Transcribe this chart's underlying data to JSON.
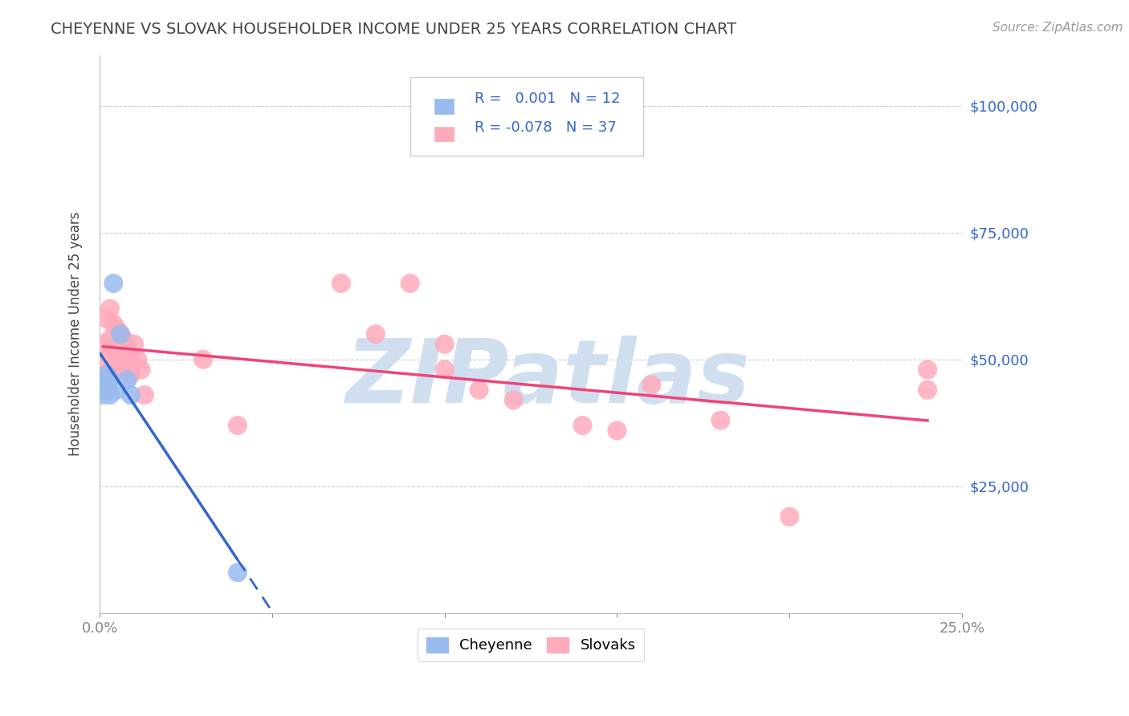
{
  "title": "CHEYENNE VS SLOVAK HOUSEHOLDER INCOME UNDER 25 YEARS CORRELATION CHART",
  "source": "Source: ZipAtlas.com",
  "ylabel": "Householder Income Under 25 years",
  "xlim": [
    0.0,
    0.25
  ],
  "ylim": [
    0,
    110000
  ],
  "xticks": [
    0.0,
    0.05,
    0.1,
    0.15,
    0.2,
    0.25
  ],
  "xticklabels": [
    "0.0%",
    "",
    "",
    "",
    "",
    "25.0%"
  ],
  "ytick_positions": [
    0,
    25000,
    50000,
    75000,
    100000
  ],
  "ytick_labels": [
    "",
    "$25,000",
    "$50,000",
    "$75,000",
    "$100,000"
  ],
  "cheyenne_color": "#99bbee",
  "slovak_color": "#ffaabb",
  "cheyenne_line_color": "#3366cc",
  "slovak_line_color": "#ee4477",
  "cheyenne_R": 0.001,
  "cheyenne_N": 12,
  "slovak_R": -0.078,
  "slovak_N": 37,
  "watermark": "ZIPatlas",
  "watermark_color": "#d0dff0",
  "cheyenne_x": [
    0.001,
    0.001,
    0.002,
    0.002,
    0.003,
    0.003,
    0.004,
    0.005,
    0.006,
    0.008,
    0.009,
    0.04
  ],
  "cheyenne_y": [
    46000,
    43000,
    47000,
    44000,
    46000,
    43000,
    65000,
    44000,
    55000,
    46000,
    43000,
    8000
  ],
  "slovak_x": [
    0.001,
    0.001,
    0.002,
    0.002,
    0.003,
    0.003,
    0.004,
    0.004,
    0.005,
    0.005,
    0.006,
    0.006,
    0.007,
    0.007,
    0.008,
    0.009,
    0.009,
    0.01,
    0.011,
    0.012,
    0.013,
    0.03,
    0.04,
    0.07,
    0.08,
    0.09,
    0.1,
    0.1,
    0.11,
    0.12,
    0.14,
    0.15,
    0.16,
    0.18,
    0.2,
    0.24,
    0.24
  ],
  "slovak_y": [
    53000,
    47000,
    58000,
    50000,
    60000,
    54000,
    57000,
    52000,
    56000,
    50000,
    55000,
    49000,
    54000,
    48000,
    52000,
    51000,
    47000,
    53000,
    50000,
    48000,
    43000,
    50000,
    37000,
    65000,
    55000,
    65000,
    53000,
    48000,
    44000,
    42000,
    37000,
    36000,
    45000,
    38000,
    19000,
    48000,
    44000
  ],
  "background_color": "#ffffff",
  "grid_color": "#cccccc",
  "title_color": "#444444",
  "tick_label_color": "#3366cc"
}
